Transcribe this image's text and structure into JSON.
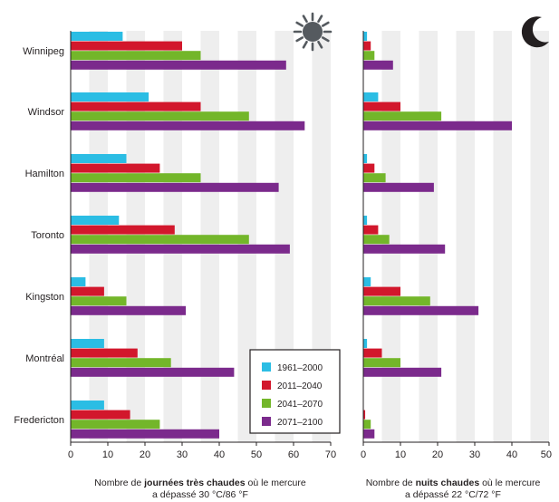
{
  "colors": {
    "1961-2000": "#2bbde4",
    "2011-2040": "#d2172c",
    "2041-2070": "#73b62a",
    "2071-2100": "#7b2a8c",
    "band": "#eeeeee",
    "axis": "#231f20",
    "icon": "#555a5f"
  },
  "icons": {
    "left": "sun-icon",
    "right": "moon-icon"
  },
  "chart_data": [
    {
      "type": "bar",
      "orientation": "horizontal",
      "categories": [
        "Winnipeg",
        "Windsor",
        "Hamilton",
        "Toronto",
        "Kingston",
        "Montréal",
        "Fredericton"
      ],
      "series": [
        {
          "name": "1961–2000",
          "values": [
            14,
            21,
            15,
            13,
            4,
            9,
            9
          ]
        },
        {
          "name": "2011–2040",
          "values": [
            30,
            35,
            24,
            28,
            9,
            18,
            16
          ]
        },
        {
          "name": "2041–2070",
          "values": [
            35,
            48,
            35,
            48,
            15,
            27,
            24
          ]
        },
        {
          "name": "2071–2100",
          "values": [
            58,
            63,
            56,
            59,
            31,
            44,
            40
          ]
        }
      ],
      "xlim": [
        0,
        70
      ],
      "xticks": [
        "0",
        "10",
        "20",
        "30",
        "40",
        "50",
        "60",
        "70"
      ],
      "xlabel_parts": [
        "Nombre de ",
        "journées très chaudes",
        " où le mercure"
      ],
      "xlabel_line2": "a dépassé 30 °C/86 °F",
      "legend": [
        "1961–2000",
        "2011–2040",
        "2041–2070",
        "2071–2100"
      ],
      "legend_position": "bottom-right"
    },
    {
      "type": "bar",
      "orientation": "horizontal",
      "categories": [
        "Winnipeg",
        "Windsor",
        "Hamilton",
        "Toronto",
        "Kingston",
        "Montréal",
        "Fredericton"
      ],
      "series": [
        {
          "name": "1961–2000",
          "values": [
            1,
            4,
            1,
            1,
            2,
            1,
            0
          ]
        },
        {
          "name": "2011–2040",
          "values": [
            2,
            10,
            3,
            4,
            10,
            5,
            0.5
          ]
        },
        {
          "name": "2041–2070",
          "values": [
            3,
            21,
            6,
            7,
            18,
            10,
            2
          ]
        },
        {
          "name": "2071–2100",
          "values": [
            8,
            40,
            19,
            22,
            31,
            21,
            3
          ]
        }
      ],
      "xlim": [
        0,
        50
      ],
      "xticks": [
        "0",
        "10",
        "20",
        "30",
        "40",
        "50"
      ],
      "xlabel_parts": [
        "Nombre de ",
        "nuits chaudes",
        " où le mercure"
      ],
      "xlabel_line2": "a dépassé 22 °C/72 °F"
    }
  ]
}
